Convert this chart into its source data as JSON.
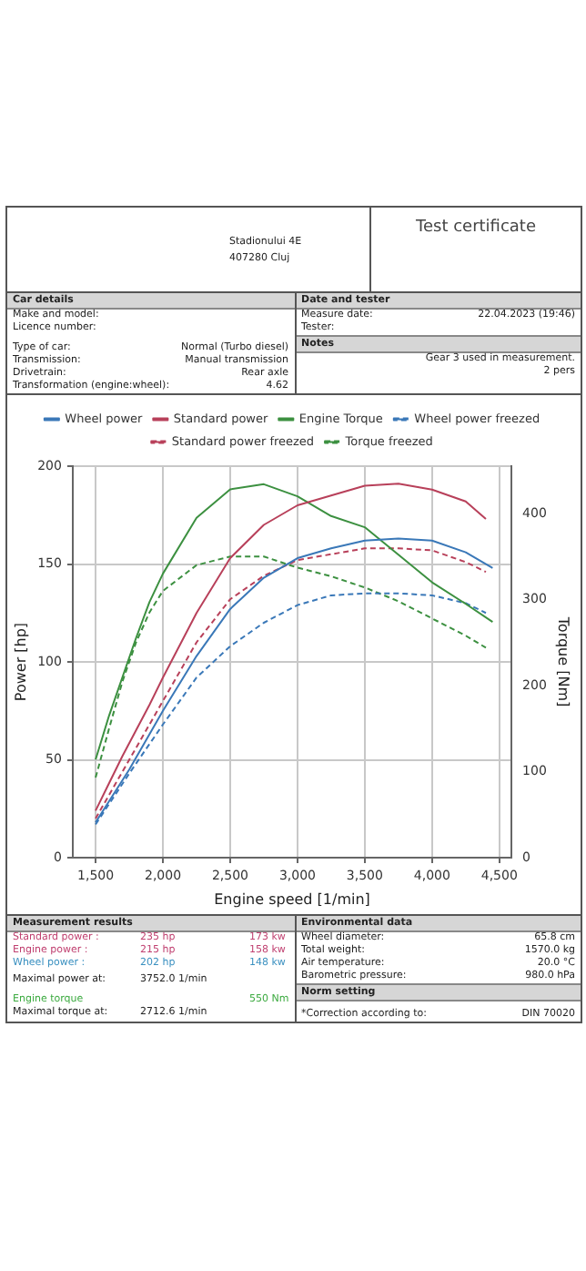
{
  "chart_data": {
    "type": "line",
    "xlabel": "Engine speed [1/min]",
    "ylabel": "Power [hp]",
    "y2label": "Torque [Nm]",
    "xlim": [
      1330,
      4590
    ],
    "xticks": [
      {
        "value": 1500,
        "label": "1,500"
      },
      {
        "value": 2000,
        "label": "2,000"
      },
      {
        "value": 2500,
        "label": "2,500"
      },
      {
        "value": 3000,
        "label": "3,000"
      },
      {
        "value": 3500,
        "label": "3,500"
      },
      {
        "value": 4000,
        "label": "4,000"
      },
      {
        "value": 4500,
        "label": "4,500"
      }
    ],
    "ylim": [
      0,
      200
    ],
    "yticks": [
      0,
      50,
      100,
      150,
      200
    ],
    "y2lim": [
      0,
      455
    ],
    "y2ticks": [
      0,
      100,
      200,
      300,
      400
    ],
    "grid": true,
    "legend": "top",
    "marker": "none",
    "series": [
      {
        "name": "Wheel power",
        "color": "#3a78b8",
        "line_style": "solid",
        "x": [
          1500,
          1750,
          2000,
          2250,
          2500,
          2750,
          3000,
          3250,
          3500,
          3750,
          4000,
          4250,
          4450
        ],
        "values": [
          18,
          45,
          75,
          103,
          127,
          143,
          153,
          158,
          162,
          163,
          162,
          156,
          148
        ]
      },
      {
        "name": "Standard power",
        "color": "#b8405a",
        "line_style": "solid",
        "x": [
          1500,
          1600,
          1700,
          1800,
          1900,
          2000,
          2250,
          2500,
          2750,
          3000,
          3250,
          3500,
          3750,
          4000,
          4250,
          4400
        ],
        "values": [
          24,
          38,
          52,
          65,
          78,
          92,
          125,
          153,
          170,
          180,
          185,
          190,
          191,
          188,
          182,
          173
        ]
      },
      {
        "name": "Engine Torque",
        "color": "#3c9040",
        "line_style": "solid",
        "axis": "y2",
        "x": [
          1500,
          1600,
          1700,
          1800,
          1900,
          2000,
          2250,
          2500,
          2750,
          3000,
          3250,
          3500,
          3750,
          4000,
          4250,
          4450
        ],
        "values": [
          114,
          165,
          210,
          255,
          297,
          330,
          395,
          428,
          434,
          420,
          397,
          384,
          352,
          320,
          295,
          274
        ]
      },
      {
        "name": "Wheel power freezed",
        "color": "#3a78b8",
        "line_style": "dashed",
        "x": [
          1500,
          1750,
          2000,
          2250,
          2500,
          2750,
          3000,
          3250,
          3500,
          3750,
          4000,
          4250,
          4400
        ],
        "values": [
          17,
          43,
          68,
          92,
          108,
          120,
          129,
          134,
          135,
          135,
          134,
          130,
          125
        ]
      },
      {
        "name": "Standard power freezed",
        "color": "#b8405a",
        "line_style": "dashed",
        "x": [
          1500,
          1750,
          2000,
          2250,
          2500,
          2750,
          3000,
          3250,
          3500,
          3750,
          4000,
          4250,
          4400
        ],
        "values": [
          20,
          50,
          80,
          110,
          132,
          144,
          152,
          155,
          158,
          158,
          157,
          151,
          146
        ]
      },
      {
        "name": "Torque freezed",
        "color": "#3c9040",
        "line_style": "dashed",
        "axis": "y2",
        "x": [
          1500,
          1600,
          1700,
          1800,
          1900,
          2000,
          2250,
          2500,
          2750,
          3000,
          3250,
          3500,
          3750,
          4000,
          4250,
          4400
        ],
        "values": [
          93,
          150,
          205,
          250,
          285,
          310,
          340,
          350,
          350,
          337,
          327,
          314,
          298,
          278,
          258,
          244
        ]
      }
    ],
    "annotations": [
      "Stadionului 4E",
      "407280 Cluj",
      "Test certificate",
      "Car details",
      "Make and model:",
      "Licence number:",
      "Type of car:",
      "Normal (Turbo diesel)",
      "Transmission:",
      "Manual transmission",
      "Drivetrain:",
      "Rear axle",
      "Transformation (engine:wheel):",
      "4.62",
      "Date and tester",
      "Measure date:",
      "22.04.2023 (19:46)",
      "Tester:",
      "Notes",
      "Gear 3 used in measurement.",
      "2 pers",
      "Measurement results",
      "Standard power :",
      "235 hp",
      "173 kw",
      "Engine power :",
      "215 hp",
      "158 kw",
      "Wheel power :",
      "202 hp",
      "148 kw",
      "Maximal power at:",
      "3752.0  1/min",
      "Engine torque",
      "550 Nm",
      "Maximal torque at:",
      "2712.6  1/min",
      "Environmental data",
      "Wheel diameter:",
      "65.8  cm",
      "Total weight:",
      "1570.0  kg",
      "Air temperature:",
      "20.0  °C",
      "Barometric pressure:",
      "980.0  hPa",
      "Norm setting",
      "*Correction according to:",
      "DIN 70020"
    ]
  }
}
